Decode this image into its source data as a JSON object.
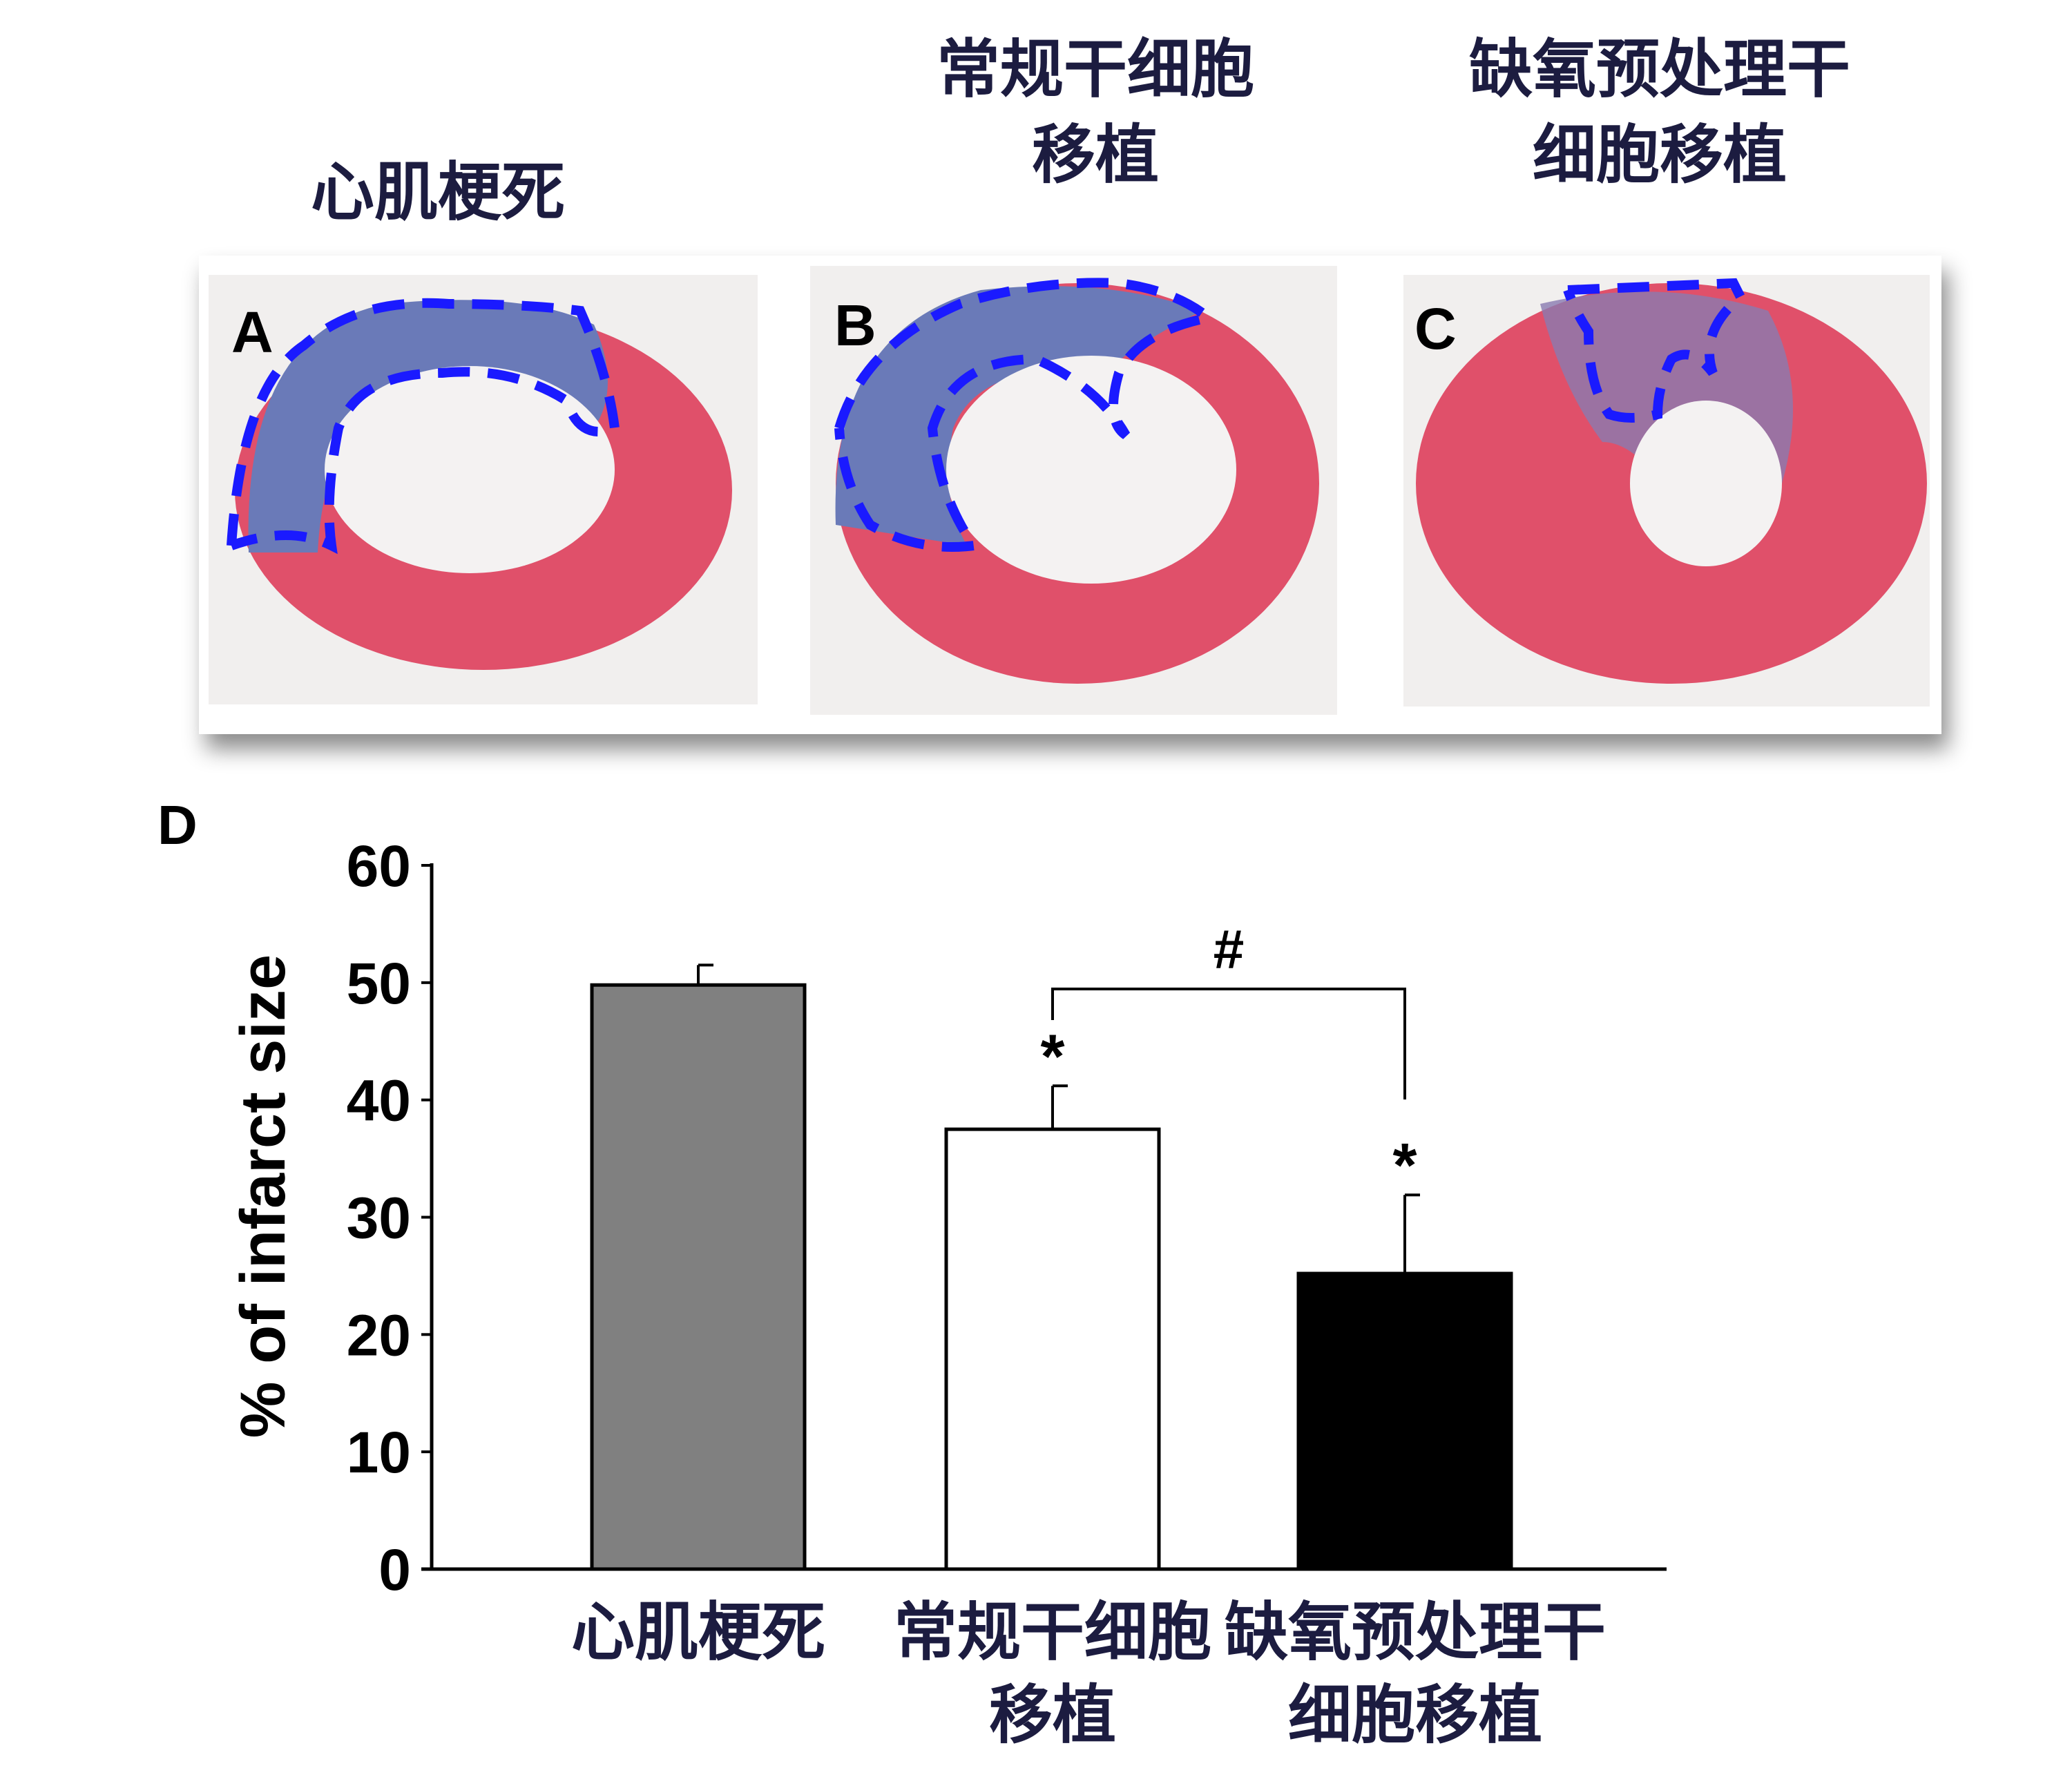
{
  "panel_titles": {
    "a": [
      "心肌梗死"
    ],
    "b": [
      "常规干细胞",
      "移植"
    ],
    "c": [
      "缺氧预处理干",
      "细胞移植"
    ]
  },
  "panel_letters": {
    "a": "A",
    "b": "B",
    "c": "C",
    "d": "D"
  },
  "colors": {
    "outline": "#1a1aff",
    "tissue": "#e0506a",
    "infarct": "#6a7ab8",
    "title": "#1c1c40"
  },
  "chart_data": {
    "type": "bar",
    "title": "",
    "xlabel": "",
    "ylabel": "% of infarct size",
    "ylim": [
      0,
      60
    ],
    "yticks": [
      "0",
      "10",
      "20",
      "30",
      "40",
      "50",
      "60"
    ],
    "grid": false,
    "categories": [
      [
        "心肌梗死"
      ],
      [
        "常规干细胞",
        "移植"
      ],
      [
        "缺氧预处理干",
        "细胞移植"
      ]
    ],
    "values": [
      49.8,
      37.5,
      25.2
    ],
    "errors": [
      1.7,
      3.7,
      6.7
    ],
    "bar_colors": [
      "#808080",
      "#ffffff",
      "#000000"
    ],
    "significance": [
      "",
      "*",
      "*"
    ],
    "bracket": {
      "from": 1,
      "to": 2,
      "label": "#"
    }
  }
}
